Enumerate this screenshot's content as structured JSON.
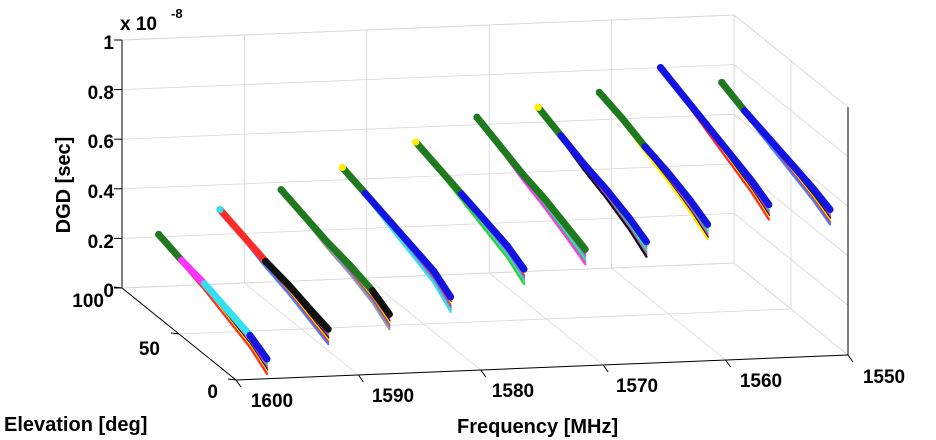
{
  "chart_data": {
    "type": "scatter",
    "projection": "3d",
    "title": "",
    "xlabel": "Frequency [MHz]",
    "ylabel": "Elevation [deg]",
    "zlabel": "DGD [sec]",
    "exponent": {
      "base": "x 10",
      "power": "-8"
    },
    "xlim": [
      1550,
      1600
    ],
    "x_reversed": true,
    "ylim": [
      0,
      100
    ],
    "zlim": [
      0,
      1
    ],
    "x_ticks": [
      "1600",
      "1590",
      "1580",
      "1570",
      "1560",
      "1550"
    ],
    "y_ticks": [
      "0",
      "50",
      "100"
    ],
    "z_ticks": [
      "0",
      "0.2",
      "0.4",
      "0.6",
      "0.8",
      "1"
    ],
    "grid": true,
    "legend": "none",
    "series": [
      {
        "frequency": 1597,
        "elevation": [
          100,
          80,
          60,
          40,
          20,
          5
        ],
        "dgd": [
          0.21,
          0.18,
          0.16,
          0.13,
          0.1,
          0.06
        ],
        "colors": [
          "#1f7a1f",
          "#1f7a1f",
          "#ff33ff",
          "#33e0f0",
          "#33e0f0",
          "#1414e0"
        ]
      },
      {
        "frequency": 1592,
        "elevation": [
          100,
          80,
          60,
          40,
          20,
          5
        ],
        "dgd": [
          0.3,
          0.27,
          0.24,
          0.22,
          0.19,
          0.17
        ],
        "colors": [
          "#33e0f0",
          "#ff2a2a",
          "#ff2a2a",
          "#111111",
          "#111111",
          "#111111"
        ]
      },
      {
        "frequency": 1587,
        "elevation": [
          100,
          80,
          60,
          40,
          20,
          5
        ],
        "dgd": [
          0.37,
          0.34,
          0.31,
          0.29,
          0.26,
          0.22
        ],
        "colors": [
          "#1f7a1f",
          "#1f7a1f",
          "#1f7a1f",
          "#1f7a1f",
          "#1f7a1f",
          "#111111"
        ]
      },
      {
        "frequency": 1582,
        "elevation": [
          100,
          80,
          60,
          40,
          20,
          5
        ],
        "dgd": [
          0.45,
          0.42,
          0.39,
          0.36,
          0.33,
          0.28
        ],
        "colors": [
          "#ffee00",
          "#1f7a1f",
          "#1414e0",
          "#1414e0",
          "#1414e0",
          "#1414e0"
        ]
      },
      {
        "frequency": 1576,
        "elevation": [
          100,
          80,
          60,
          40,
          20,
          5
        ],
        "dgd": [
          0.54,
          0.51,
          0.48,
          0.45,
          0.42,
          0.38
        ],
        "colors": [
          "#ffee00",
          "#1f7a1f",
          "#1f7a1f",
          "#1414e0",
          "#1414e0",
          "#1414e0"
        ]
      },
      {
        "frequency": 1571,
        "elevation": [
          100,
          80,
          60,
          40,
          20,
          5
        ],
        "dgd": [
          0.63,
          0.59,
          0.55,
          0.52,
          0.48,
          0.45
        ],
        "colors": [
          "#1f7a1f",
          "#1f7a1f",
          "#1f7a1f",
          "#1f7a1f",
          "#1f7a1f",
          "#1f7a1f"
        ]
      },
      {
        "frequency": 1566,
        "elevation": [
          100,
          80,
          60,
          40,
          20,
          5
        ],
        "dgd": [
          0.66,
          0.62,
          0.58,
          0.55,
          0.51,
          0.47
        ],
        "colors": [
          "#ffee00",
          "#1f7a1f",
          "#1414e0",
          "#1414e0",
          "#1414e0",
          "#1414e0"
        ]
      },
      {
        "frequency": 1561,
        "elevation": [
          100,
          80,
          60,
          40,
          20,
          5
        ],
        "dgd": [
          0.71,
          0.68,
          0.64,
          0.61,
          0.57,
          0.53
        ],
        "colors": [
          "#1f7a1f",
          "#1f7a1f",
          "#1f7a1f",
          "#1414e0",
          "#1414e0",
          "#1414e0"
        ]
      },
      {
        "frequency": 1556,
        "elevation": [
          100,
          80,
          60,
          40,
          20,
          5
        ],
        "dgd": [
          0.8,
          0.76,
          0.72,
          0.68,
          0.64,
          0.6
        ],
        "colors": [
          "#1414e0",
          "#1414e0",
          "#1414e0",
          "#1414e0",
          "#1414e0",
          "#1414e0"
        ]
      },
      {
        "frequency": 1551,
        "elevation": [
          100,
          80,
          60,
          40,
          20,
          5
        ],
        "dgd": [
          0.73,
          0.69,
          0.66,
          0.63,
          0.6,
          0.57
        ],
        "colors": [
          "#1f7a1f",
          "#1f7a1f",
          "#1414e0",
          "#1414e0",
          "#1414e0",
          "#1414e0"
        ]
      }
    ],
    "spread_colors": [
      "#999999",
      "#33e0f0",
      "#2ad42a",
      "#ff33ff",
      "#111111",
      "#ffee00",
      "#ff2a2a",
      "#4b7bff"
    ]
  }
}
